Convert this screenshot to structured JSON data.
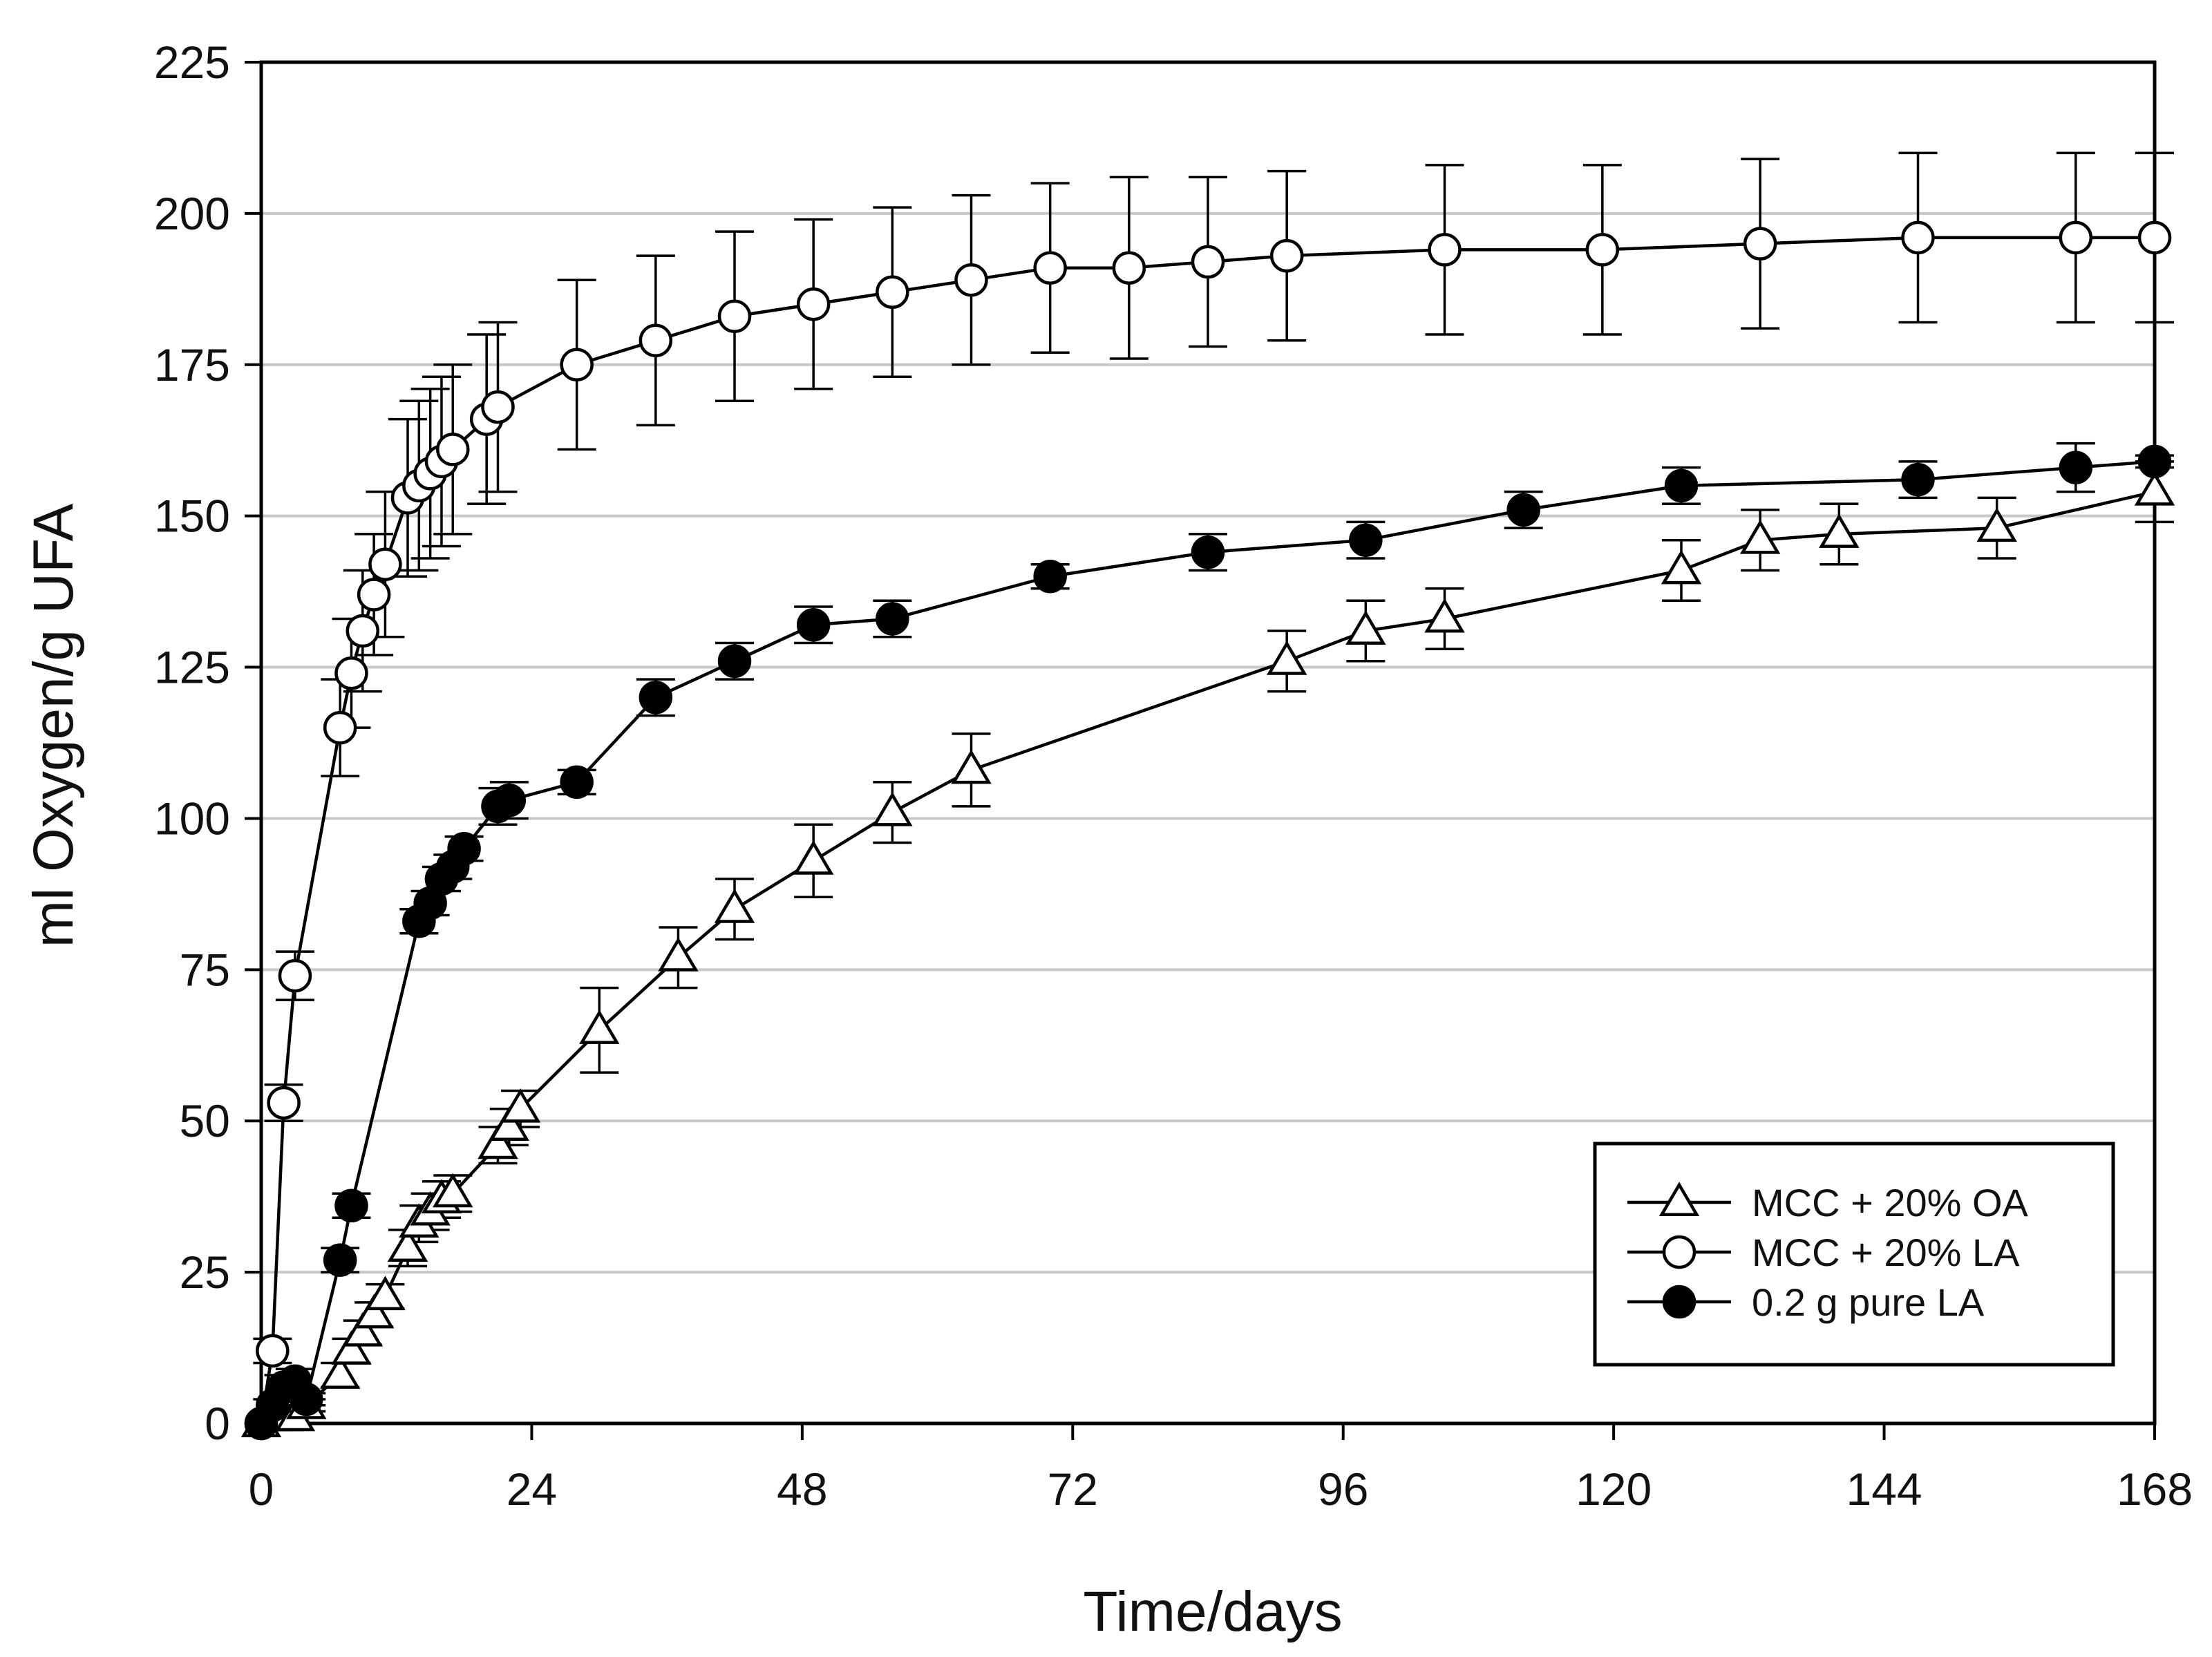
{
  "chart_data": {
    "type": "line",
    "title": "",
    "xlabel": "Time/days",
    "ylabel": "ml Oxygen/g UFA",
    "xlim": [
      0,
      168
    ],
    "ylim": [
      0,
      225
    ],
    "xticks": [
      0,
      24,
      48,
      72,
      96,
      120,
      144,
      168
    ],
    "yticks": [
      0,
      25,
      50,
      75,
      100,
      125,
      150,
      175,
      200,
      225
    ],
    "grid": "horizontal",
    "legend_position": "bottom-right",
    "series": [
      {
        "name": "MCC + 20% OA",
        "marker": "open-triangle",
        "x": [
          0,
          1,
          2,
          3,
          4,
          7,
          8,
          9,
          10,
          11,
          13,
          14,
          15,
          16,
          17,
          21,
          22,
          23,
          30,
          37,
          42,
          49,
          56,
          63,
          91,
          98,
          105,
          126,
          133,
          140,
          154,
          168
        ],
        "y": [
          0,
          1,
          1,
          1,
          3,
          8,
          12,
          15,
          18,
          21,
          29,
          33,
          35,
          37,
          38,
          46,
          49,
          52,
          65,
          77,
          85,
          93,
          101,
          108,
          126,
          131,
          133,
          141,
          146,
          147,
          148,
          154
        ],
        "err": [
          0,
          1,
          1,
          1,
          1,
          2,
          2,
          2,
          2,
          2,
          3,
          3,
          3,
          3,
          3,
          3,
          3,
          3,
          7,
          5,
          5,
          6,
          5,
          6,
          5,
          5,
          5,
          5,
          5,
          5,
          5,
          5
        ]
      },
      {
        "name": "MCC + 20% LA",
        "marker": "open-circle",
        "x": [
          0,
          1,
          2,
          3,
          7,
          8,
          9,
          10,
          11,
          13,
          14,
          15,
          16,
          17,
          20,
          21,
          28,
          35,
          42,
          49,
          56,
          63,
          70,
          77,
          84,
          91,
          105,
          119,
          133,
          147,
          161,
          168
        ],
        "y": [
          0,
          12,
          53,
          74,
          115,
          124,
          131,
          137,
          142,
          153,
          155,
          157,
          159,
          161,
          166,
          168,
          175,
          179,
          183,
          185,
          187,
          189,
          191,
          191,
          192,
          193,
          194,
          194,
          195,
          196,
          196,
          196
        ],
        "err": [
          0,
          2,
          3,
          4,
          8,
          9,
          10,
          10,
          12,
          13,
          14,
          14,
          14,
          14,
          14,
          14,
          14,
          14,
          14,
          14,
          14,
          14,
          14,
          15,
          14,
          14,
          14,
          14,
          14,
          14,
          14,
          14
        ]
      },
      {
        "name": "0.2 g pure LA",
        "marker": "filled-circle",
        "x": [
          0,
          1,
          2,
          3,
          4,
          7,
          8,
          14,
          15,
          16,
          17,
          18,
          21,
          22,
          28,
          35,
          42,
          49,
          56,
          70,
          84,
          98,
          112,
          126,
          147,
          161,
          168
        ],
        "y": [
          0,
          3,
          6,
          7,
          4,
          27,
          36,
          83,
          86,
          90,
          92,
          95,
          102,
          103,
          106,
          120,
          126,
          132,
          133,
          140,
          144,
          146,
          151,
          155,
          156,
          158,
          159
        ],
        "err": [
          0,
          1,
          2,
          2,
          1,
          2,
          2,
          2,
          2,
          2,
          2,
          2,
          3,
          3,
          2,
          3,
          3,
          3,
          3,
          2,
          3,
          3,
          3,
          3,
          3,
          4,
          1
        ]
      }
    ]
  }
}
